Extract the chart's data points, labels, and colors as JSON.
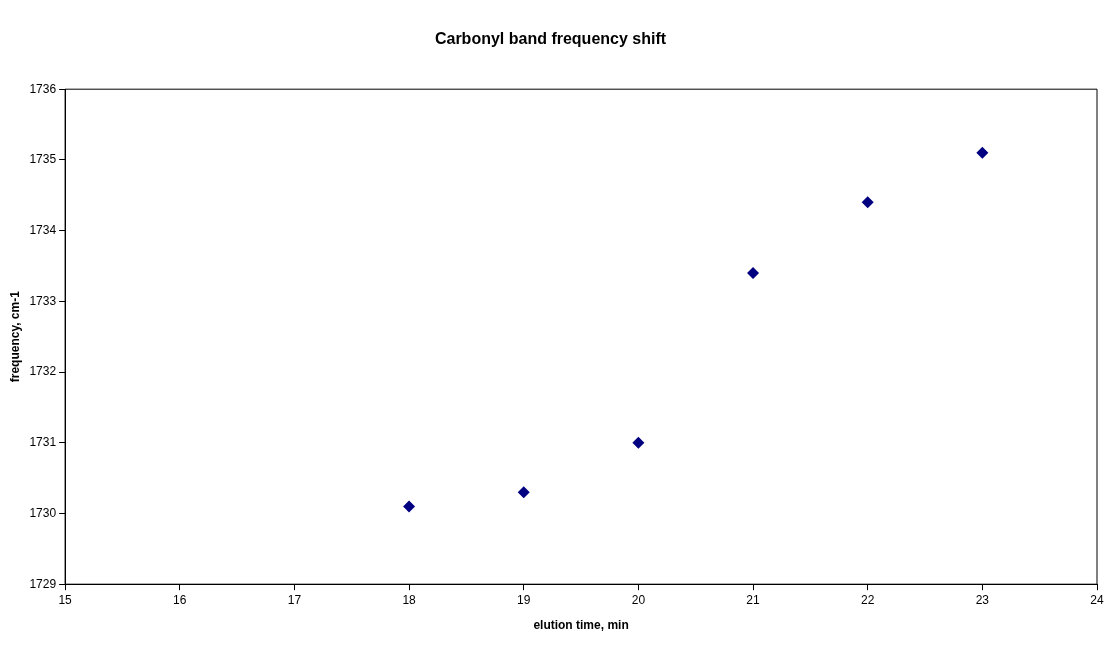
{
  "chart_data": {
    "type": "scatter",
    "title": "Carbonyl band frequency shift",
    "xlabel": "elution time, min",
    "ylabel": "frequency, cm-1",
    "x": [
      18,
      19,
      20,
      21,
      22,
      23
    ],
    "series": [
      {
        "color": "#000080",
        "values": [
          1730.1,
          1730.3,
          1731.0,
          1733.4,
          1734.4,
          1735.1
        ]
      }
    ],
    "xlim": [
      15,
      24
    ],
    "xticks": [
      15,
      16,
      17,
      18,
      19,
      20,
      21,
      22,
      23,
      24
    ],
    "ylim": [
      1729,
      1736
    ],
    "yticks": [
      1729,
      1730,
      1731,
      1732,
      1733,
      1734,
      1735,
      1736
    ],
    "marker": "diamond",
    "legend": false
  }
}
